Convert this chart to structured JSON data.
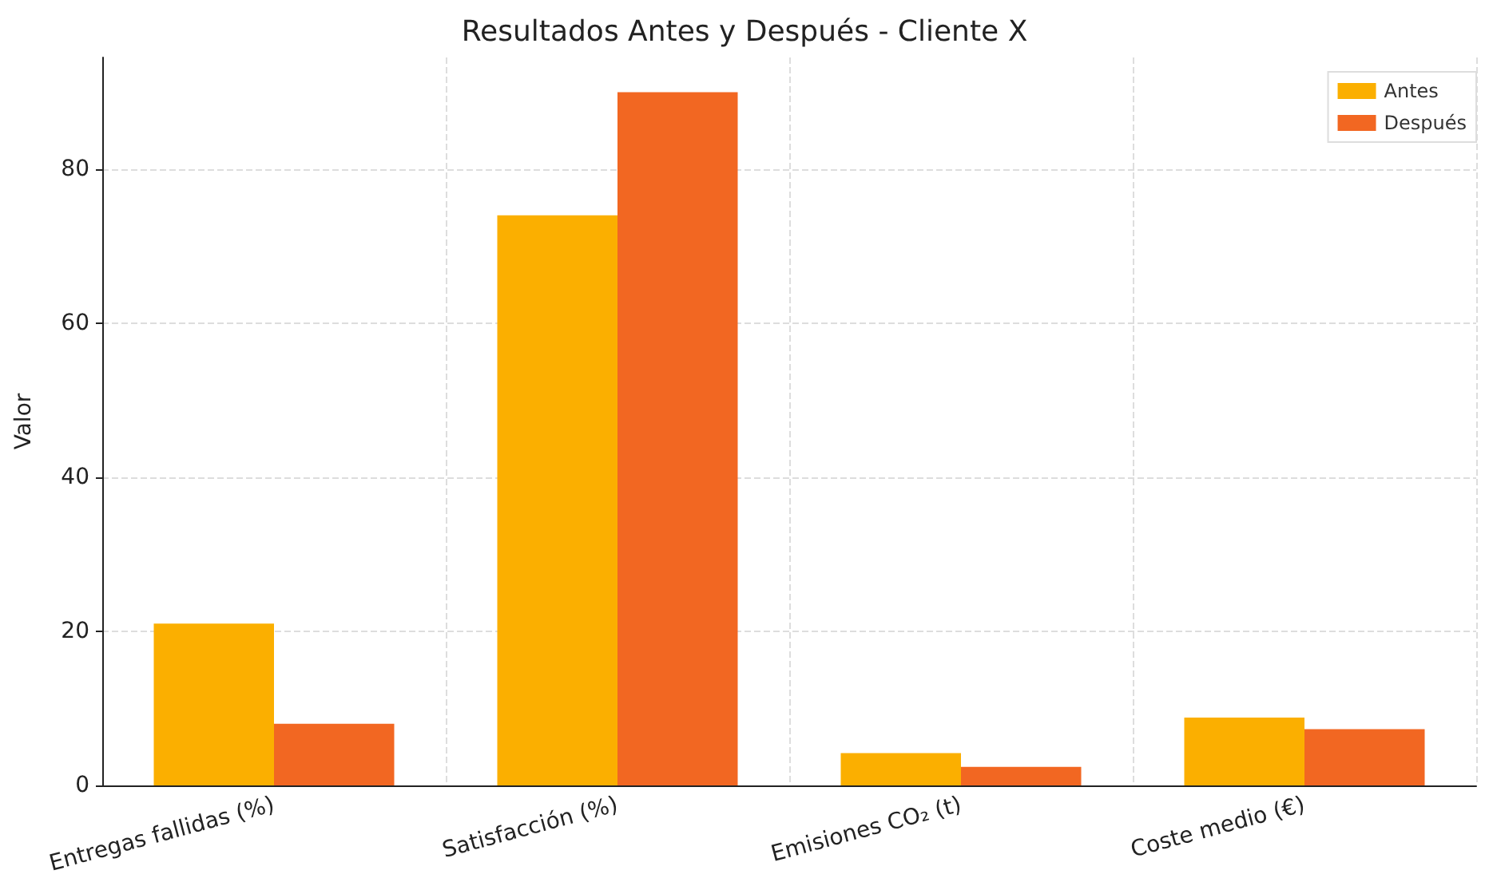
{
  "chart_data": {
    "type": "bar",
    "title": "Resultados Antes y Después - Cliente X",
    "ylabel": "Valor",
    "categories": [
      "Entregas fallidas (%)",
      "Satisfacción (%)",
      "Emisiones CO₂ (t)",
      "Coste medio (€)"
    ],
    "series": [
      {
        "name": "Antes",
        "color": "#fbaf00",
        "values": [
          21,
          74,
          4.2,
          8.8
        ]
      },
      {
        "name": "Después",
        "color": "#f26722",
        "values": [
          8,
          90,
          2.4,
          7.3
        ]
      }
    ],
    "ylim": [
      0,
      94.5
    ],
    "yticks": [
      0,
      20,
      40,
      60,
      80
    ],
    "grid": true,
    "legend": "top right"
  }
}
